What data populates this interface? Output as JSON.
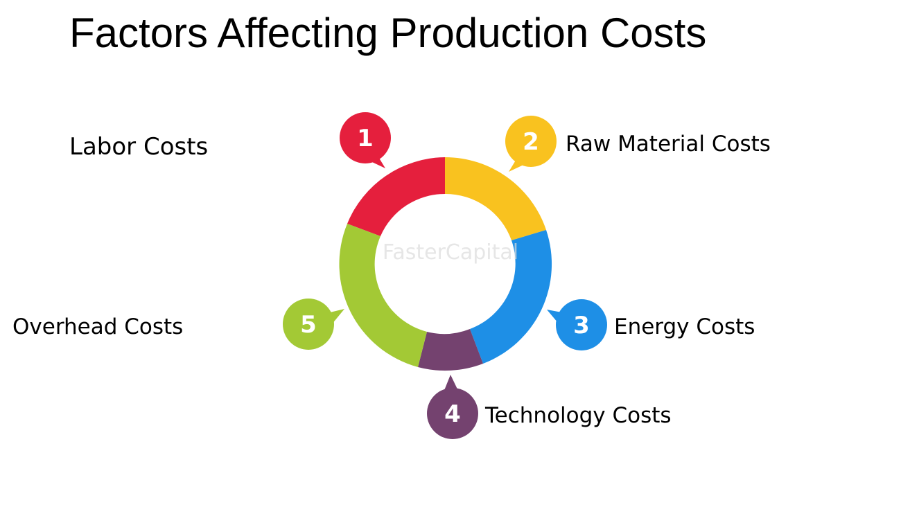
{
  "title": "Factors Affecting Production Costs",
  "watermark": "FasterCapital",
  "factors": [
    {
      "number": "1",
      "label": "Labor Costs",
      "color": "#e51f3d"
    },
    {
      "number": "2",
      "label": "Raw Material Costs",
      "color": "#f9c21f"
    },
    {
      "number": "3",
      "label": "Energy Costs",
      "color": "#1e8fe6"
    },
    {
      "number": "4",
      "label": "Technology Costs",
      "color": "#74426f"
    },
    {
      "number": "5",
      "label": "Overhead Costs",
      "color": "#a3c935"
    }
  ]
}
